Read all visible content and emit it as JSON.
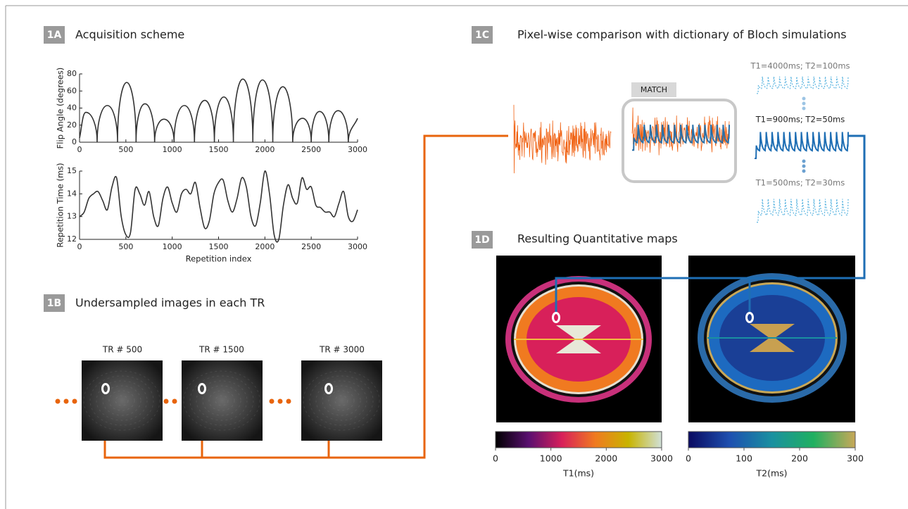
{
  "panels": [
    {
      "tag": "1A",
      "title": "Acquisition scheme"
    },
    {
      "tag": "1B",
      "title": "Undersampled images in each TR"
    },
    {
      "tag": "1C",
      "title": "Pixel-wise comparison with dictionary of Bloch simulations"
    },
    {
      "tag": "1D",
      "title": "Resulting Quantitative maps"
    }
  ],
  "chart_data": [
    {
      "type": "line",
      "ylabel": "Flip Angle (degrees)",
      "x": [
        0,
        68,
        190,
        300,
        410,
        509,
        610,
        706,
        810,
        911,
        1020,
        1131,
        1240,
        1352,
        1455,
        1557,
        1660,
        1762,
        1870,
        1974,
        2085,
        2194,
        2300,
        2407,
        2500,
        2590,
        2690,
        2790,
        2900,
        3000
      ],
      "values": [
        5,
        35,
        0,
        43,
        0,
        70,
        0,
        45,
        0,
        27,
        0,
        43,
        0,
        49,
        0,
        53,
        0,
        74,
        0,
        73,
        0,
        65,
        0,
        28,
        0,
        36,
        0,
        37,
        0,
        28
      ],
      "xlim": [
        0,
        3000
      ],
      "xticks": [
        0,
        500,
        1000,
        1500,
        2000,
        2500,
        3000
      ],
      "ylim": [
        0,
        80
      ],
      "yticks": [
        0,
        20,
        40,
        60,
        80
      ],
      "color": "#333333"
    },
    {
      "type": "line",
      "ylabel": "Repetition Time (ms)",
      "xlabel": "Repetition index",
      "x": [
        0,
        50,
        100,
        150,
        200,
        250,
        300,
        350,
        400,
        450,
        500,
        550,
        600,
        650,
        700,
        750,
        800,
        850,
        900,
        950,
        1000,
        1050,
        1100,
        1150,
        1200,
        1250,
        1300,
        1350,
        1400,
        1450,
        1500,
        1550,
        1600,
        1650,
        1700,
        1750,
        1800,
        1850,
        1900,
        1950,
        2000,
        2050,
        2100,
        2150,
        2200,
        2250,
        2300,
        2350,
        2400,
        2450,
        2500,
        2550,
        2600,
        2650,
        2700,
        2750,
        2800,
        2850,
        2900,
        2950,
        3000
      ],
      "values": [
        13.0,
        13.2,
        13.8,
        14.0,
        14.1,
        13.7,
        13.3,
        14.3,
        14.7,
        13.0,
        12.2,
        12.3,
        14.2,
        14.0,
        13.5,
        14.1,
        13.0,
        12.6,
        13.8,
        14.3,
        13.6,
        13.2,
        14.0,
        14.2,
        14.0,
        14.5,
        13.4,
        12.5,
        12.8,
        14.0,
        14.5,
        14.6,
        13.7,
        13.2,
        13.8,
        14.7,
        14.3,
        13.0,
        12.6,
        13.6,
        15.0,
        14.0,
        12.2,
        12.0,
        13.5,
        14.4,
        13.8,
        13.6,
        14.7,
        14.2,
        14.3,
        13.5,
        13.4,
        13.2,
        13.2,
        13.0,
        13.6,
        14.1,
        13.0,
        12.8,
        13.3
      ],
      "xlim": [
        0,
        3000
      ],
      "xticks": [
        0,
        500,
        1000,
        1500,
        2000,
        2500,
        3000
      ],
      "ylim": [
        12,
        15
      ],
      "yticks": [
        12,
        13,
        14,
        15
      ],
      "color": "#333333"
    }
  ],
  "tr_images": [
    "TR # 500",
    "TR # 1500",
    "TR # 3000"
  ],
  "match_label": "MATCH",
  "dictionary": [
    "T1=4000ms; T2=100ms",
    "T1=900ms; T2=50ms",
    "T1=500ms; T2=30ms"
  ],
  "colorbars": [
    {
      "label": "T1(ms)",
      "lim": [
        0,
        3000
      ],
      "ticks": [
        0,
        1000,
        2000,
        3000
      ],
      "colors": [
        "#000000",
        "#5a1070",
        "#d8205a",
        "#f07a20",
        "#c8b400",
        "#d0e0d8"
      ]
    },
    {
      "label": "T2(ms)",
      "lim": [
        0,
        300
      ],
      "ticks": [
        0,
        100,
        200,
        300
      ],
      "colors": [
        "#0a0a60",
        "#1e50b0",
        "#1a90a0",
        "#20b060",
        "#c8a858"
      ]
    }
  ]
}
